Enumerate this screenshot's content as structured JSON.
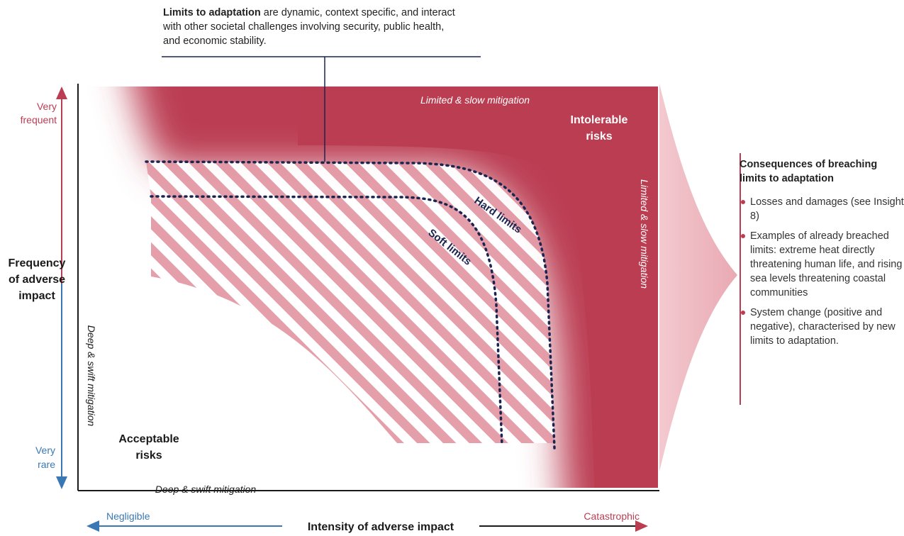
{
  "callout": {
    "bold": "Limits to adaptation",
    "text": " are dynamic, context specific, and interact with other societal challenges involving security, public health, and economic stability."
  },
  "y_axis": {
    "title_line1": "Frequency",
    "title_line2": "of adverse",
    "title_line3": "impact",
    "top_line1": "Very",
    "top_line2": "frequent",
    "bottom_line1": "Very",
    "bottom_line2": "rare"
  },
  "x_axis": {
    "title": "Intensity of adverse impact",
    "left": "Negligible",
    "right": "Catastrophic"
  },
  "zones": {
    "intolerable_line1": "Intolerable",
    "intolerable_line2": "risks",
    "acceptable_line1": "Acceptable",
    "acceptable_line2": "risks"
  },
  "mitigation": {
    "top": "Limited & slow mitigation",
    "right": "Limited & slow mitigation",
    "left": "Deep & swift mitigation",
    "bottom": "Deep & swift mitigation"
  },
  "curves": {
    "hard": "Hard limits",
    "soft": "Soft limits"
  },
  "consequences": {
    "title": "Consequences of breaching limits to adaptation",
    "items": [
      "Losses and damages (see Insight 8)",
      "Examples of already breached limits: extreme heat directly threatening human life, and rising sea levels threatening coastal communities",
      "System change (positive and negative), characterised by new limits to adaptation."
    ]
  },
  "colors": {
    "risk_red": "#bb3d52",
    "axis_blue": "#3a78b5",
    "limit_navy": "#1c2450"
  }
}
